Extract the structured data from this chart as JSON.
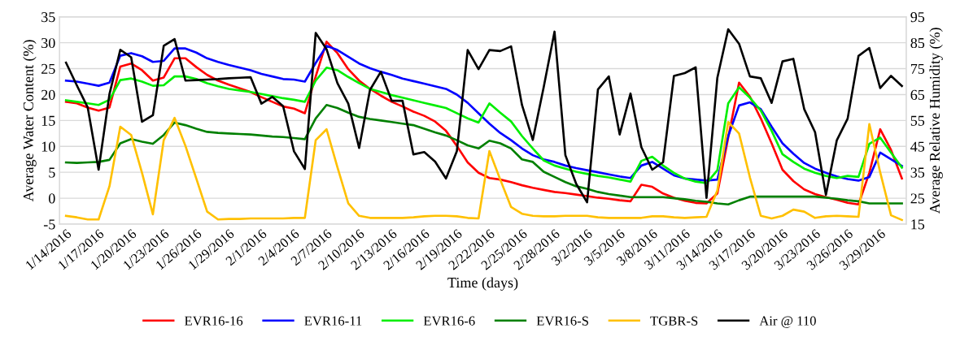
{
  "chart_data": {
    "type": "line",
    "xlabel": "Time (days)",
    "ylabel": "Average Water Content (%)",
    "y2label": "Average Relative Humidity (%)",
    "categories": [
      "1/14/2016",
      null,
      null,
      "1/17/2016",
      null,
      null,
      "1/20/2016",
      null,
      null,
      "1/23/2016",
      null,
      null,
      "1/26/2016",
      null,
      null,
      "1/29/2016",
      null,
      null,
      "2/1/2016",
      null,
      null,
      "2/4/2016",
      null,
      null,
      "2/7/2016",
      null,
      null,
      "2/10/2016",
      null,
      null,
      "2/13/2016",
      null,
      null,
      "2/16/2016",
      null,
      null,
      "2/19/2016",
      null,
      null,
      "2/22/2016",
      null,
      null,
      "2/25/2016",
      null,
      null,
      "2/28/2016",
      null,
      null,
      "3/2/2016",
      null,
      null,
      "3/5/2016",
      null,
      null,
      "3/8/2016",
      null,
      null,
      "3/11/2016",
      null,
      null,
      "3/14/2016",
      null,
      null,
      "3/17/2016",
      null,
      null,
      "3/20/2016",
      null,
      null,
      "3/23/2016",
      null,
      null,
      "3/26/2016",
      null,
      null,
      "3/29/2016",
      null,
      null
    ],
    "ylim": [
      -5,
      35
    ],
    "yticks": [
      -5,
      0,
      5,
      10,
      15,
      20,
      25,
      30,
      35
    ],
    "y2lim": [
      15,
      95
    ],
    "y2ticks": [
      15,
      25,
      35,
      45,
      55,
      65,
      75,
      85,
      95
    ],
    "grid": "y",
    "legend": "bottom",
    "marker": "none",
    "line_style": "solid",
    "series": [
      {
        "name": "EVR16-16",
        "color": "#ff0000",
        "values": [
          18.6,
          18.3,
          17.5,
          16.9,
          17.5,
          25.4,
          26,
          24.7,
          22.7,
          23.3,
          27,
          27,
          25.3,
          23.8,
          22.7,
          21.9,
          21.2,
          20.5,
          19.5,
          18.6,
          17.7,
          17.3,
          16.4,
          23.5,
          30.2,
          28,
          24.9,
          22.7,
          21.1,
          19.8,
          18.6,
          17.7,
          16.7,
          15.9,
          14.8,
          13,
          10.1,
          6.9,
          4.9,
          3.9,
          3.6,
          3.1,
          2.5,
          2,
          1.6,
          1.2,
          1,
          0.7,
          0.4,
          0.1,
          -0.1,
          -0.4,
          -0.6,
          2.6,
          2.2,
          0.9,
          0.1,
          -0.5,
          -0.9,
          -1,
          0.9,
          11.7,
          22.3,
          19.6,
          15.4,
          10.6,
          5.5,
          3.3,
          1.7,
          0.8,
          0.2,
          -0.3,
          -0.9,
          -1.2,
          4.9,
          13.3,
          9.3,
          3.8
        ]
      },
      {
        "name": "EVR16-11",
        "color": "#0000ff",
        "values": [
          22.7,
          22.5,
          22.1,
          21.7,
          22.3,
          27.5,
          28,
          27.4,
          26.3,
          26.5,
          28.9,
          28.9,
          28.1,
          27,
          26.3,
          25.7,
          25.2,
          24.7,
          24,
          23.5,
          23,
          22.9,
          22.5,
          26.1,
          29.4,
          28.6,
          27.3,
          26,
          25.1,
          24.4,
          23.8,
          23.1,
          22.6,
          22.1,
          21.6,
          21.1,
          20,
          18.4,
          16.4,
          14.4,
          12.6,
          11.2,
          9.6,
          8.3,
          7.5,
          7,
          6.3,
          5.8,
          5.4,
          5,
          4.6,
          4.2,
          3.9,
          6.3,
          7,
          5.7,
          4.4,
          3.8,
          3.6,
          3.4,
          3.6,
          12,
          17.9,
          18.5,
          17.2,
          13.8,
          10.6,
          8.6,
          6.8,
          5.7,
          4.9,
          4.2,
          3.7,
          3.4,
          4.1,
          8.8,
          7.5,
          6.2
        ]
      },
      {
        "name": "EVR16-6",
        "color": "#00ee00",
        "values": [
          18.9,
          18.6,
          18.3,
          18,
          19,
          22.8,
          23.1,
          22.5,
          21.7,
          21.8,
          23.5,
          23.5,
          23,
          22.2,
          21.6,
          21.1,
          20.8,
          20.5,
          20.1,
          19.7,
          19.3,
          19,
          18.6,
          22.7,
          25.2,
          24.7,
          23.4,
          22.2,
          21.1,
          20.5,
          19.9,
          19.4,
          18.9,
          18.4,
          17.9,
          17.4,
          16.4,
          15.4,
          14.6,
          18.3,
          16.5,
          14.8,
          12,
          9.6,
          7.3,
          6.3,
          5.7,
          5.1,
          4.7,
          4.3,
          4,
          3.6,
          3.2,
          7.2,
          8,
          6.3,
          4.9,
          3.8,
          3.2,
          2.9,
          5.4,
          18.3,
          21.4,
          19.4,
          16.9,
          13,
          8.5,
          7,
          5.7,
          4.9,
          4.3,
          3.9,
          4.3,
          4.1,
          10.5,
          11.7,
          8.8,
          5.9
        ]
      },
      {
        "name": "EVR16-S",
        "color": "#008000",
        "values": [
          6.9,
          6.8,
          6.9,
          7,
          7.4,
          10.6,
          11.4,
          10.9,
          10.5,
          12.2,
          14.6,
          14.1,
          13.4,
          12.8,
          12.6,
          12.5,
          12.4,
          12.3,
          12.1,
          11.9,
          11.8,
          11.6,
          11.4,
          15.4,
          18,
          17.4,
          16.5,
          15.7,
          15.3,
          15,
          14.7,
          14.4,
          14.1,
          13.4,
          12.7,
          12.1,
          11.2,
          10.2,
          9.6,
          11.1,
          10.6,
          9.6,
          7.5,
          7,
          5.1,
          4.1,
          3.1,
          2.3,
          1.8,
          1.2,
          0.8,
          0.5,
          0.2,
          0.2,
          0.2,
          0.2,
          0,
          -0.2,
          -0.5,
          -0.7,
          -1,
          -1.2,
          -0.4,
          0.3,
          0.3,
          0.3,
          0.3,
          0.3,
          0.3,
          0.3,
          0.1,
          -0.1,
          -0.4,
          -0.6,
          -1,
          -1,
          -1,
          -1
        ]
      },
      {
        "name": "TGBR-S",
        "color": "#ffc000",
        "values": [
          -3.4,
          -3.7,
          -4.1,
          -4.1,
          2.3,
          13.8,
          12.2,
          4.9,
          -3.1,
          11.2,
          15.5,
          10.1,
          3.8,
          -2.6,
          -4.1,
          -4,
          -4,
          -3.9,
          -3.9,
          -3.9,
          -3.9,
          -3.8,
          -3.8,
          11.2,
          13.3,
          6,
          -1,
          -3.4,
          -3.8,
          -3.8,
          -3.8,
          -3.8,
          -3.7,
          -3.5,
          -3.4,
          -3.4,
          -3.5,
          -3.8,
          -3.9,
          9.1,
          3.6,
          -1.7,
          -3,
          -3.4,
          -3.5,
          -3.5,
          -3.4,
          -3.4,
          -3.4,
          -3.7,
          -3.8,
          -3.8,
          -3.8,
          -3.8,
          -3.5,
          -3.5,
          -3.7,
          -3.8,
          -3.7,
          -3.6,
          1.5,
          14.7,
          12.5,
          4,
          -3.4,
          -3.9,
          -3.4,
          -2.2,
          -2.6,
          -3.8,
          -3.5,
          -3.4,
          -3.5,
          -3.6,
          14.3,
          5,
          -3.3,
          -4.2
        ]
      },
      {
        "name": "Air @ 110",
        "color": "#000000",
        "axis": "y2",
        "values": [
          77.3,
          68.5,
          60,
          36,
          65.2,
          82.3,
          79.4,
          54.5,
          57,
          83.8,
          86.4,
          70.4,
          70.6,
          70.8,
          71,
          71.3,
          71.5,
          71.7,
          61.5,
          64.1,
          60.5,
          43.1,
          36.3,
          88.8,
          82.5,
          69.4,
          61.5,
          44.4,
          66.8,
          73.8,
          62.6,
          62.6,
          41.9,
          42.8,
          39.1,
          32.6,
          43.1,
          82.2,
          74.8,
          82.2,
          81.8,
          83.6,
          61,
          47.5,
          67.8,
          89.3,
          41.6,
          30.5,
          23.4,
          67,
          72,
          49.6,
          65.4,
          44.7,
          36,
          38.9,
          72.2,
          73.3,
          75.5,
          25.1,
          71.5,
          90.2,
          84.6,
          72,
          71.3,
          61.8,
          77.8,
          78.8,
          59.4,
          50.5,
          26.3,
          47.3,
          55.7,
          79.9,
          83,
          67.5,
          72.2,
          68.3
        ]
      }
    ]
  }
}
